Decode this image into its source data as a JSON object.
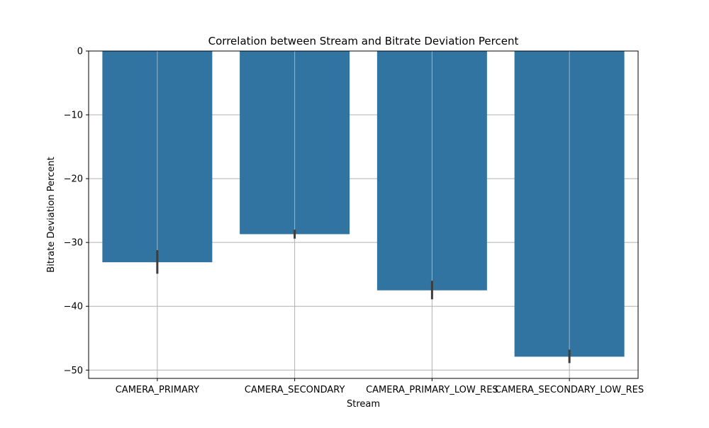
{
  "chart_data": {
    "type": "bar",
    "title": "Correlation between Stream and Bitrate Deviation Percent",
    "xlabel": "Stream",
    "ylabel": "Bitrate Deviation Percent",
    "categories": [
      "CAMERA_PRIMARY",
      "CAMERA_SECONDARY",
      "CAMERA_PRIMARY_LOW_RES",
      "CAMERA_SECONDARY_LOW_RES"
    ],
    "values": [
      -33.1,
      -28.7,
      -37.5,
      -47.9
    ],
    "error_bars": [
      [
        -34.9,
        -31.2
      ],
      [
        -29.4,
        -28.0
      ],
      [
        -38.9,
        -36.0
      ],
      [
        -48.9,
        -46.8
      ]
    ],
    "ylim": [
      -51.3,
      0
    ],
    "yticks": [
      0,
      -10,
      -20,
      -30,
      -40,
      -50
    ],
    "ytick_labels": [
      "0",
      "−10",
      "−20",
      "−30",
      "−40",
      "−50"
    ],
    "grid": true,
    "colors": {
      "bar": "#3274a1",
      "error_bar": "#3d3d3d",
      "grid": "#b0b0b0",
      "axis": "#000000"
    }
  }
}
